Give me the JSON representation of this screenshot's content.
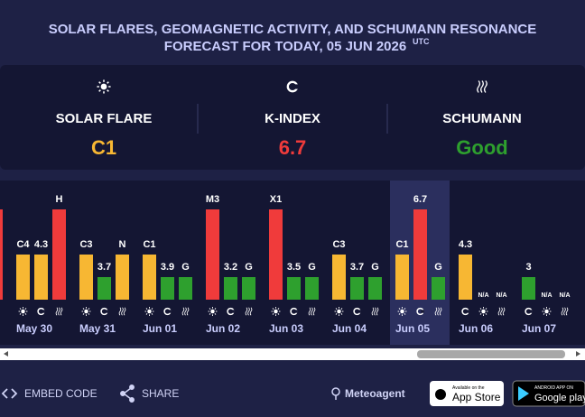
{
  "header": {
    "title_line1": "SOLAR FLARES, GEOMAGNETIC ACTIVITY, AND SCHUMANN RESONANCE",
    "title_line2": "FORECAST FOR TODAY, 05 JUN 2026",
    "title_sup": "UTC"
  },
  "summary": [
    {
      "kind": "flare",
      "label": "SOLAR FLARE",
      "value": "C1",
      "color": "#f7b733"
    },
    {
      "kind": "kp",
      "label": "K-INDEX",
      "value": "6.7",
      "color": "#f03b3b"
    },
    {
      "kind": "sch",
      "label": "SCHUMANN",
      "value": "Good",
      "color": "#2ea02e"
    }
  ],
  "days": [
    {
      "date": "May 30",
      "bars": [
        {
          "kind": "flare",
          "label": "C4",
          "color": "#f7b733"
        },
        {
          "kind": "kp",
          "label": "4.3",
          "color": "#f7b733"
        },
        {
          "kind": "sch",
          "label": "H",
          "color": "#f03b3b"
        }
      ]
    },
    {
      "date": "May 31",
      "bars": [
        {
          "kind": "flare",
          "label": "C3",
          "color": "#f7b733"
        },
        {
          "kind": "kp",
          "label": "3.7",
          "color": "#2ea02e"
        },
        {
          "kind": "sch",
          "label": "N",
          "color": "#f7b733"
        }
      ]
    },
    {
      "date": "Jun 01",
      "bars": [
        {
          "kind": "flare",
          "label": "C1",
          "color": "#f7b733"
        },
        {
          "kind": "kp",
          "label": "3.9",
          "color": "#2ea02e"
        },
        {
          "kind": "sch",
          "label": "G",
          "color": "#2ea02e"
        }
      ]
    },
    {
      "date": "Jun 02",
      "bars": [
        {
          "kind": "flare",
          "label": "M3",
          "color": "#f03b3b"
        },
        {
          "kind": "kp",
          "label": "3.2",
          "color": "#2ea02e"
        },
        {
          "kind": "sch",
          "label": "G",
          "color": "#2ea02e"
        }
      ]
    },
    {
      "date": "Jun 03",
      "bars": [
        {
          "kind": "flare",
          "label": "X1",
          "color": "#f03b3b"
        },
        {
          "kind": "kp",
          "label": "3.5",
          "color": "#2ea02e"
        },
        {
          "kind": "sch",
          "label": "G",
          "color": "#2ea02e"
        }
      ]
    },
    {
      "date": "Jun 04",
      "bars": [
        {
          "kind": "flare",
          "label": "C3",
          "color": "#f7b733"
        },
        {
          "kind": "kp",
          "label": "3.7",
          "color": "#2ea02e"
        },
        {
          "kind": "sch",
          "label": "G",
          "color": "#2ea02e"
        }
      ]
    },
    {
      "date": "Jun 05",
      "bars": [
        {
          "kind": "flare",
          "label": "C1",
          "color": "#f7b733"
        },
        {
          "kind": "kp",
          "label": "6.7",
          "color": "#f03b3b"
        },
        {
          "kind": "sch",
          "label": "G",
          "color": "#2ea02e"
        }
      ]
    },
    {
      "date": "Jun 06",
      "bars": [
        {
          "kind": "kp",
          "label": "4.3",
          "color": "#f7b733"
        },
        {
          "kind": "flare",
          "label": "N/A"
        },
        {
          "kind": "sch",
          "label": "N/A"
        }
      ]
    },
    {
      "date": "Jun 07",
      "bars": [
        {
          "kind": "kp",
          "label": "3",
          "color": "#2ea02e"
        },
        {
          "kind": "flare",
          "label": "N/A"
        },
        {
          "kind": "sch",
          "label": "N/A"
        }
      ]
    }
  ],
  "footer": {
    "embed": "EMBED CODE",
    "share": "SHARE",
    "brand": "Meteoagent",
    "app_store_small": "Available on the",
    "app_store": "App Store",
    "google_small": "ANDROID APP ON",
    "google": "Google play"
  }
}
